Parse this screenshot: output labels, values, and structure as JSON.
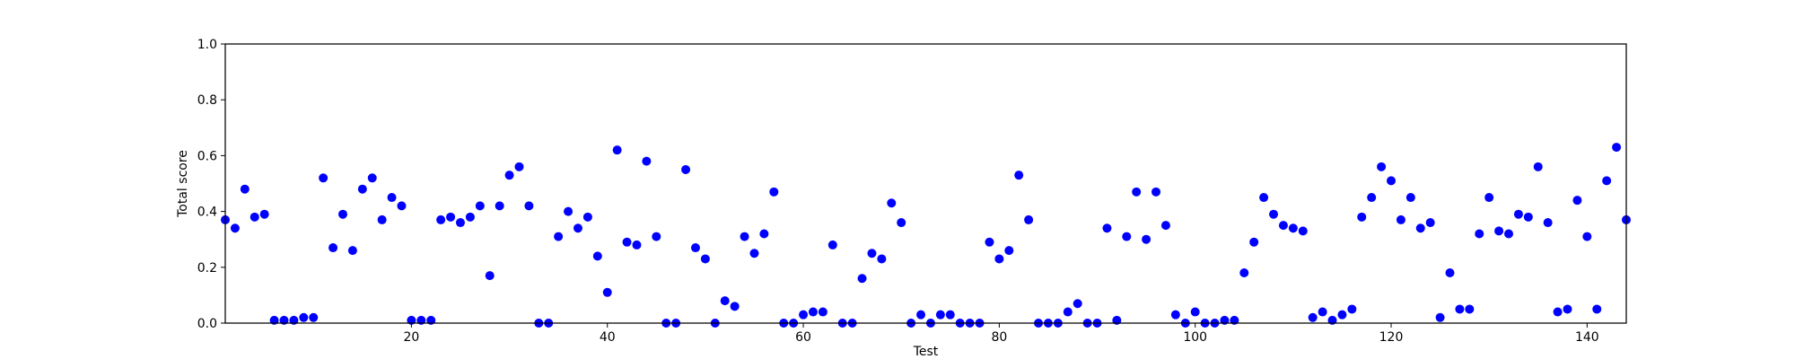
{
  "colors": {
    "point": "#0000ff",
    "axis": "#000000",
    "background": "#ffffff"
  },
  "chart_data": {
    "type": "scatter",
    "xlabel": "Test",
    "ylabel": "Total score",
    "xlim": [
      1,
      144
    ],
    "ylim": [
      0,
      1.0
    ],
    "xticks": [
      20,
      40,
      60,
      80,
      100,
      120,
      140
    ],
    "yticks": [
      0.0,
      0.2,
      0.4,
      0.6,
      0.8,
      1.0
    ],
    "xtick_labels": [
      "20",
      "40",
      "60",
      "80",
      "100",
      "120",
      "140"
    ],
    "ytick_labels": [
      "0.0",
      "0.2",
      "0.4",
      "0.6",
      "0.8",
      "1.0"
    ],
    "grid": false,
    "series": [
      {
        "x": [
          1,
          2,
          3,
          4,
          5,
          6,
          7,
          8,
          9,
          10,
          11,
          12,
          13,
          14,
          15,
          16,
          17,
          18,
          19,
          20,
          21,
          22,
          23,
          24,
          25,
          26,
          27,
          28,
          29,
          30,
          31,
          32,
          33,
          34,
          35,
          36,
          37,
          38,
          39,
          40,
          41,
          42,
          43,
          44,
          45,
          46,
          47,
          48,
          49,
          50,
          51,
          52,
          53,
          54,
          55,
          56,
          57,
          58,
          59,
          60,
          61,
          62,
          63,
          64,
          65,
          66,
          67,
          68,
          69,
          70,
          71,
          72,
          73,
          74,
          75,
          76,
          77,
          78,
          79,
          80,
          81,
          82,
          83,
          84,
          85,
          86,
          87,
          88,
          89,
          90,
          91,
          92,
          93,
          94,
          95,
          96,
          97,
          98,
          99,
          100,
          101,
          102,
          103,
          104,
          105,
          106,
          107,
          108,
          109,
          110,
          111,
          112,
          113,
          114,
          115,
          116,
          117,
          118,
          119,
          120,
          121,
          122,
          123,
          124,
          125,
          126,
          127,
          128,
          129,
          130,
          131,
          132,
          133,
          134,
          135,
          136,
          137,
          138,
          139,
          140,
          141,
          142,
          143,
          144
        ],
        "y": [
          0.37,
          0.34,
          0.48,
          0.38,
          0.39,
          0.01,
          0.01,
          0.01,
          0.02,
          0.02,
          0.52,
          0.27,
          0.39,
          0.26,
          0.48,
          0.52,
          0.37,
          0.45,
          0.42,
          0.01,
          0.01,
          0.01,
          0.37,
          0.38,
          0.36,
          0.38,
          0.42,
          0.17,
          0.42,
          0.53,
          0.56,
          0.42,
          0.0,
          0.0,
          0.31,
          0.4,
          0.34,
          0.38,
          0.24,
          0.11,
          0.62,
          0.29,
          0.28,
          0.58,
          0.31,
          0.0,
          0.0,
          0.55,
          0.27,
          0.23,
          0.0,
          0.08,
          0.06,
          0.31,
          0.25,
          0.32,
          0.47,
          0.0,
          0.0,
          0.03,
          0.04,
          0.04,
          0.28,
          0.0,
          0.0,
          0.16,
          0.25,
          0.23,
          0.43,
          0.36,
          0.0,
          0.03,
          0.0,
          0.03,
          0.03,
          0.0,
          0.0,
          0.0,
          0.29,
          0.23,
          0.26,
          0.53,
          0.37,
          0.0,
          0.0,
          0.0,
          0.04,
          0.07,
          0.0,
          0.0,
          0.34,
          0.01,
          0.31,
          0.47,
          0.3,
          0.47,
          0.35,
          0.03,
          0.0,
          0.04,
          0.0,
          0.0,
          0.01,
          0.01,
          0.18,
          0.29,
          0.45,
          0.39,
          0.35,
          0.34,
          0.33,
          0.02,
          0.04,
          0.01,
          0.03,
          0.05,
          0.38,
          0.45,
          0.56,
          0.51,
          0.37,
          0.45,
          0.34,
          0.36,
          0.02,
          0.18,
          0.05,
          0.05,
          0.32,
          0.45,
          0.33,
          0.32,
          0.39,
          0.38,
          0.56,
          0.36,
          0.04,
          0.05,
          0.44,
          0.31,
          0.05,
          0.51,
          0.63,
          0.37
        ]
      }
    ]
  }
}
